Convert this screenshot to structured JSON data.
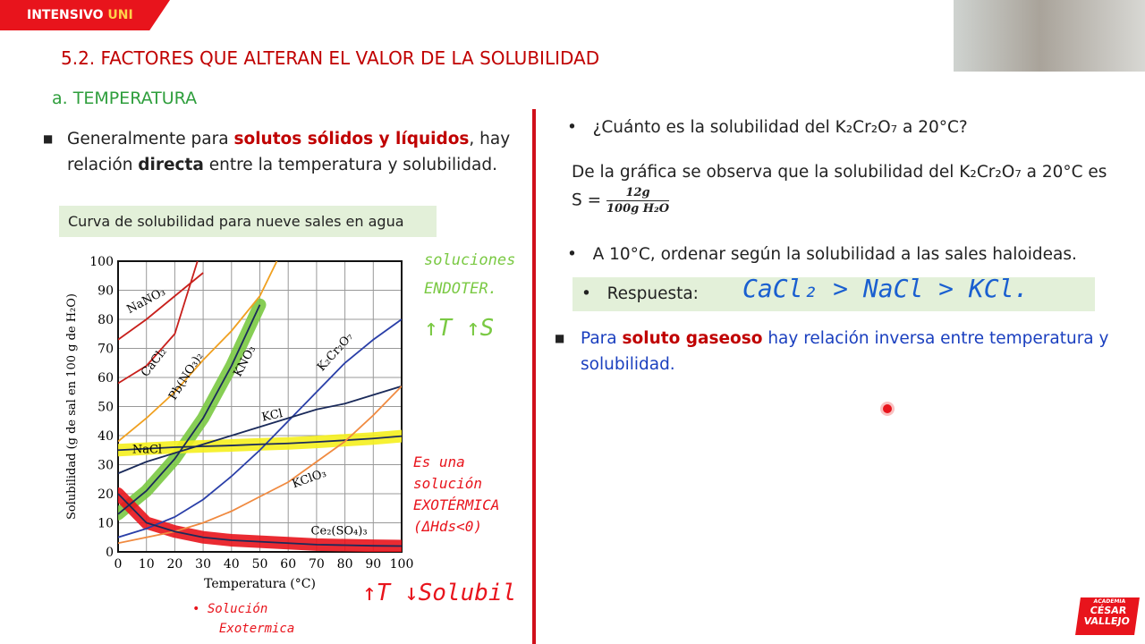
{
  "header": {
    "badge": "INTENSIVO",
    "badge_accent": "UNI",
    "title": "5.2. FACTORES QUE ALTERAN EL VALOR DE LA SOLUBILIDAD",
    "subtitle": "a. TEMPERATURA"
  },
  "left_bullet": [
    "Generalmente para ",
    "solutos sólidos y líquidos",
    ", hay relación ",
    "directa",
    " entre la temperatura y solubilidad."
  ],
  "chart_data": {
    "type": "line",
    "title": "Curva de solubilidad para nueve sales en agua",
    "x_label": "Temperatura (°C)",
    "y_label": "Solubilidad (g de sal en 100 g de H₂O)",
    "xlim": [
      0,
      100
    ],
    "ylim": [
      0,
      100
    ],
    "xticks": [
      0,
      10,
      20,
      30,
      40,
      50,
      60,
      70,
      80,
      90,
      100
    ],
    "yticks": [
      0,
      10,
      20,
      30,
      40,
      50,
      60,
      70,
      80,
      90,
      100
    ],
    "grid": true,
    "series": [
      {
        "name": "NaNO₃",
        "color": "#c8201c",
        "x": [
          0,
          10,
          20,
          30
        ],
        "values": [
          73,
          80,
          88,
          96
        ]
      },
      {
        "name": "CaCl₂",
        "color": "#c8201c",
        "x": [
          0,
          10,
          20,
          28
        ],
        "values": [
          58,
          64,
          75,
          100
        ]
      },
      {
        "name": "Pb(NO₃)₂",
        "color": "#f0a020",
        "x": [
          0,
          10,
          20,
          30,
          40,
          50,
          56
        ],
        "values": [
          38,
          46,
          55,
          66,
          76,
          88,
          100
        ]
      },
      {
        "name": "KNO₃",
        "color": "#1a2a5a",
        "highlight": "#7ac943",
        "x": [
          0,
          10,
          20,
          30,
          40,
          50
        ],
        "values": [
          13,
          21,
          32,
          46,
          64,
          85
        ]
      },
      {
        "name": "K₂Cr₂O₇",
        "color": "#2a3fa8",
        "x": [
          0,
          10,
          20,
          30,
          40,
          50,
          60,
          70,
          80,
          90,
          100
        ],
        "values": [
          5,
          8,
          12,
          18,
          26,
          35,
          45,
          55,
          65,
          73,
          80
        ]
      },
      {
        "name": "KCl",
        "color": "#1a2a5a",
        "x": [
          0,
          10,
          20,
          30,
          40,
          50,
          60,
          70,
          80,
          90,
          100
        ],
        "values": [
          27,
          31,
          34,
          37,
          40,
          43,
          46,
          49,
          51,
          54,
          57
        ]
      },
      {
        "name": "NaCl",
        "color": "#1a2a5a",
        "highlight": "#f5f01e",
        "x": [
          0,
          10,
          20,
          30,
          40,
          50,
          60,
          70,
          80,
          90,
          100
        ],
        "values": [
          35,
          35.5,
          36,
          36.3,
          36.6,
          37,
          37.3,
          37.8,
          38.4,
          39,
          39.8
        ]
      },
      {
        "name": "KClO₃",
        "color": "#f08a40",
        "x": [
          0,
          10,
          20,
          30,
          40,
          50,
          60,
          70,
          80,
          90,
          100
        ],
        "values": [
          3,
          5,
          7,
          10,
          14,
          19,
          24,
          31,
          38,
          47,
          57
        ]
      },
      {
        "name": "Ce₂(SO₄)₃",
        "color": "#1a2a5a",
        "highlight": "#e8141c",
        "x": [
          0,
          10,
          20,
          30,
          40,
          50,
          60,
          70,
          80,
          90,
          100
        ],
        "values": [
          20,
          10,
          7,
          5,
          4,
          3.5,
          3,
          2.5,
          2.3,
          2.1,
          2
        ]
      }
    ]
  },
  "annotations": [
    "soluciones",
    "ENDOTER.",
    "↑T ↑S",
    "Es una",
    "solución",
    "EXOTÉRMICA",
    "(ΔHds<0)",
    "• Solución",
    "Exotermica",
    "↑T ↓Solubil"
  ],
  "right": {
    "q1": "¿Cuánto es la solubilidad del K₂Cr₂O₇  a 20°C?",
    "a1": "De la gráfica se observa que la solubilidad del K₂Cr₂O₇  a 20°C  es S =",
    "a1_num": "12g",
    "a1_den": "100g H₂O",
    "q2": "A 10°C, ordenar según la solubilidad a las sales haloideas.",
    "resp_label": "Respuesta:",
    "resp": "CaCl₂ > NaCl > KCl.",
    "gas": [
      "Para ",
      "soluto gaseoso",
      " hay relación inversa entre temperatura y solubilidad."
    ]
  },
  "logo": {
    "small": "ACADEMIA",
    "line1": "CÉSAR",
    "line2": "VALLEJO"
  }
}
